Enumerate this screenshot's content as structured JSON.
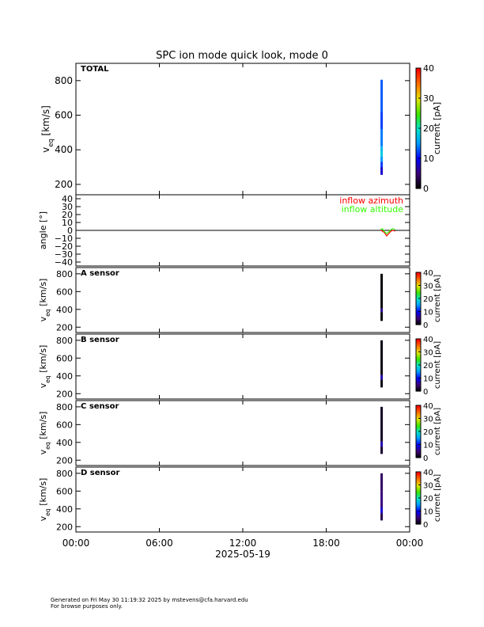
{
  "title": "SPC ion mode quick look, mode 0",
  "footer": {
    "line1": "Generated on Fri May 30 11:19:32 2025 by mstevens@cfa.harvard.edu",
    "line2": "For browse purposes only."
  },
  "colorbar_label": "current [pA]",
  "colorbar_ticks_large": [
    "0",
    "10",
    "20",
    "30",
    "40"
  ],
  "colorbar_ticks_small": [
    "0",
    "10",
    "20",
    "30",
    "40"
  ],
  "x_tick_labels": [
    "00:00",
    "06:00",
    "12:00",
    "18:00",
    "00:00"
  ],
  "x_date_label": "2025-05-19",
  "chart_data": [
    {
      "type": "heatmap",
      "panel": "total",
      "label": "TOTAL",
      "ylabel": "v_eq [km/s]",
      "y_ticks": [
        200,
        400,
        600,
        800
      ],
      "ylim": [
        140,
        900
      ],
      "xlim_hours": [
        0,
        24
      ],
      "zlabel": "current [pA]",
      "zlim": [
        0,
        40
      ],
      "time_hours": [
        21.9,
        22.05
      ],
      "v_range": [
        255,
        805
      ],
      "cells": [
        {
          "v": [
            255,
            300
          ],
          "z": 8
        },
        {
          "v": [
            300,
            330
          ],
          "z": 12
        },
        {
          "v": [
            330,
            360
          ],
          "z": 15
        },
        {
          "v": [
            360,
            390
          ],
          "z": 18
        },
        {
          "v": [
            390,
            420
          ],
          "z": 17
        },
        {
          "v": [
            420,
            520
          ],
          "z": 14
        },
        {
          "v": [
            520,
            620
          ],
          "z": 12
        },
        {
          "v": [
            620,
            805
          ],
          "z": 13
        }
      ]
    },
    {
      "type": "line",
      "panel": "angle",
      "ylabel": "angle [°]",
      "y_ticks": [
        -40,
        -30,
        -20,
        -10,
        0,
        10,
        20,
        30,
        40
      ],
      "ylim": [
        -45,
        45
      ],
      "xlim_hours": [
        0,
        24
      ],
      "zero_line": true,
      "series": [
        {
          "name": "inflow azimuth",
          "color": "#ff0000",
          "x": [
            21.9,
            22.05,
            22.2,
            22.35,
            22.5,
            22.65,
            22.8,
            22.95
          ],
          "y": [
            0,
            -1,
            -3,
            -7,
            -4,
            -1,
            0,
            -1
          ]
        },
        {
          "name": "inflow altitude",
          "color": "#33ff00",
          "x": [
            21.9,
            22.05,
            22.2,
            22.35,
            22.5,
            22.65,
            22.8,
            22.95
          ],
          "y": [
            1,
            2,
            -2,
            -4,
            -2,
            1,
            2,
            1
          ]
        }
      ]
    },
    {
      "type": "heatmap",
      "panel": "sensor",
      "label": "A sensor",
      "ylabel": "v_eq [km/s]",
      "y_ticks": [
        200,
        400,
        600,
        800
      ],
      "ylim": [
        140,
        870
      ],
      "xlim_hours": [
        0,
        24
      ],
      "zlim": [
        0,
        40
      ],
      "time_hours": [
        21.9,
        22.05
      ],
      "cells": [
        {
          "v": [
            270,
            370
          ],
          "z": 0.5
        },
        {
          "v": [
            370,
            410
          ],
          "z": 6
        },
        {
          "v": [
            410,
            800
          ],
          "z": 0.3
        }
      ]
    },
    {
      "type": "heatmap",
      "panel": "sensor",
      "label": "B sensor",
      "ylabel": "v_eq [km/s]",
      "y_ticks": [
        200,
        400,
        600,
        800
      ],
      "ylim": [
        140,
        870
      ],
      "xlim_hours": [
        0,
        24
      ],
      "zlim": [
        0,
        40
      ],
      "time_hours": [
        21.9,
        22.05
      ],
      "cells": [
        {
          "v": [
            270,
            360
          ],
          "z": 1
        },
        {
          "v": [
            360,
            410
          ],
          "z": 7
        },
        {
          "v": [
            410,
            800
          ],
          "z": 0.8
        }
      ]
    },
    {
      "type": "heatmap",
      "panel": "sensor",
      "label": "C sensor",
      "ylabel": "v_eq [km/s]",
      "y_ticks": [
        200,
        400,
        600,
        800
      ],
      "ylim": [
        140,
        870
      ],
      "xlim_hours": [
        0,
        24
      ],
      "zlim": [
        0,
        40
      ],
      "time_hours": [
        21.9,
        22.05
      ],
      "cells": [
        {
          "v": [
            270,
            350
          ],
          "z": 2
        },
        {
          "v": [
            350,
            410
          ],
          "z": 7
        },
        {
          "v": [
            410,
            800
          ],
          "z": 1.5
        }
      ]
    },
    {
      "type": "heatmap",
      "panel": "sensor",
      "label": "D sensor",
      "ylabel": "v_eq [km/s]",
      "y_ticks": [
        200,
        400,
        600,
        800
      ],
      "ylim": [
        140,
        870
      ],
      "xlim_hours": [
        0,
        24
      ],
      "zlim": [
        0,
        40
      ],
      "time_hours": [
        21.9,
        22.05
      ],
      "cells": [
        {
          "v": [
            270,
            350
          ],
          "z": 3
        },
        {
          "v": [
            350,
            420
          ],
          "z": 8
        },
        {
          "v": [
            420,
            600
          ],
          "z": 5
        },
        {
          "v": [
            600,
            800
          ],
          "z": 4
        }
      ]
    }
  ]
}
